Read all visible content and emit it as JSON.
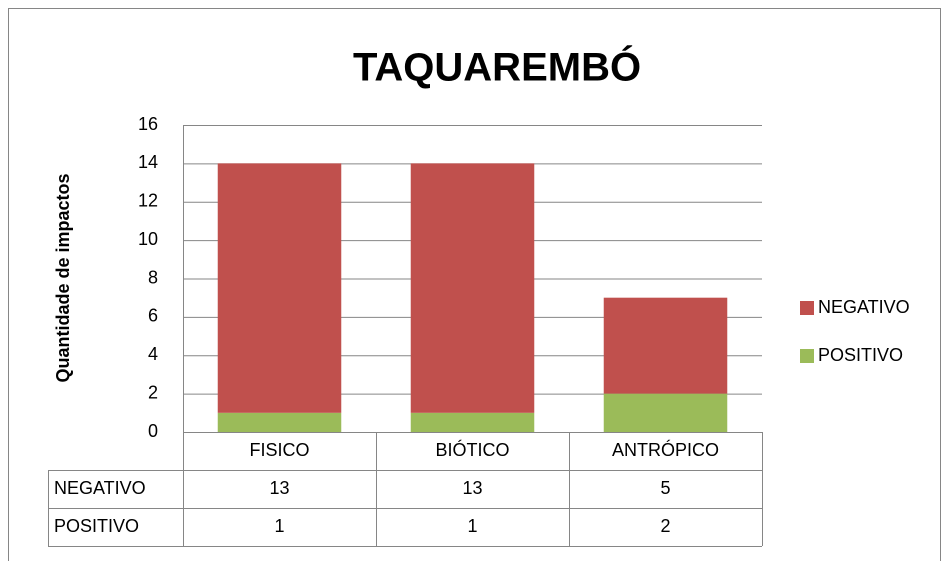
{
  "chart_data": {
    "type": "bar",
    "stacked": true,
    "title": "TAQUAREMBÓ",
    "y_label": "Quantidade de impactos",
    "categories": [
      "FISICO",
      "BIÓTICO",
      "ANTRÓPICO"
    ],
    "series": [
      {
        "name": "NEGATIVO",
        "color": "#c0504d",
        "values": [
          13,
          13,
          5
        ]
      },
      {
        "name": "POSITIVO",
        "color": "#9bbb59",
        "values": [
          1,
          1,
          2
        ]
      }
    ],
    "ylim": [
      0,
      16
    ],
    "yticks": [
      0,
      2,
      4,
      6,
      8,
      10,
      12,
      14,
      16
    ],
    "grid": true,
    "legend": "right",
    "data_table": true
  }
}
